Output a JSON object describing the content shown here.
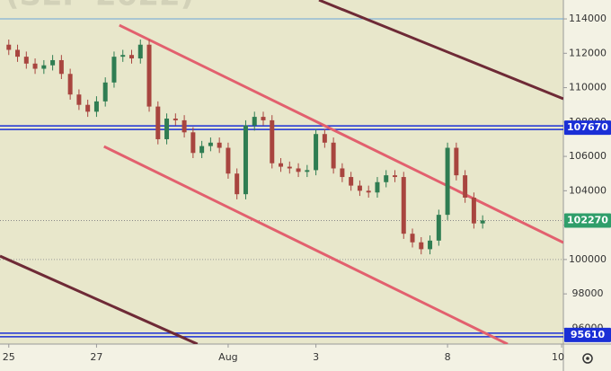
{
  "chart_data": {
    "type": "candlestick",
    "title": "(SEP 2022)",
    "x": [
      0,
      0.2,
      0.4,
      0.6,
      0.8,
      1,
      1.2,
      1.4,
      1.6,
      1.8,
      2,
      2.2,
      2.4,
      2.6,
      2.8,
      3,
      3.2,
      3.4,
      3.6,
      3.8,
      4,
      4.2,
      4.4,
      4.6,
      4.8,
      5,
      5.2,
      5.4,
      5.6,
      5.8,
      6,
      6.2,
      6.4,
      6.6,
      6.8,
      7,
      7.2,
      7.4,
      7.6,
      7.8,
      8,
      8.2,
      8.4,
      8.6,
      8.8,
      9,
      9.2,
      9.4,
      9.6,
      9.8,
      10,
      10.2,
      10.4,
      10.6,
      10.8
    ],
    "open": [
      112500,
      112200,
      111800,
      111400,
      111100,
      111300,
      111600,
      110800,
      109600,
      109000,
      108600,
      109200,
      110300,
      111800,
      111900,
      111700,
      112500,
      108900,
      107000,
      108200,
      108100,
      107400,
      106200,
      106600,
      106800,
      106500,
      105000,
      103800,
      107800,
      108300,
      108100,
      105600,
      105400,
      105300,
      105100,
      105200,
      107300,
      106800,
      105300,
      104800,
      104300,
      104000,
      103900,
      104500,
      104900,
      104800,
      101500,
      101000,
      100600,
      101100,
      102600,
      106500,
      104900,
      103600,
      102100
    ],
    "high": [
      112800,
      112500,
      112100,
      111700,
      111600,
      111900,
      111900,
      111100,
      109900,
      109300,
      109500,
      110600,
      112100,
      112200,
      112200,
      112800,
      112800,
      109200,
      108500,
      108500,
      108400,
      107700,
      106900,
      107100,
      107100,
      106800,
      105300,
      108100,
      108600,
      108600,
      108400,
      105900,
      105700,
      105600,
      105500,
      107600,
      107600,
      107100,
      105600,
      105100,
      104600,
      104300,
      104800,
      105200,
      105200,
      105100,
      101800,
      101300,
      101400,
      102900,
      106800,
      106800,
      105200,
      103900,
      102570
    ],
    "low": [
      111900,
      111500,
      111100,
      110800,
      110800,
      111000,
      110500,
      109300,
      108700,
      108300,
      108300,
      108900,
      110000,
      111500,
      111400,
      111400,
      108600,
      106700,
      106700,
      107800,
      107100,
      105900,
      105900,
      106300,
      106200,
      104700,
      103500,
      103500,
      107500,
      107800,
      105300,
      105100,
      105000,
      104800,
      104800,
      104900,
      106500,
      105000,
      104500,
      104000,
      103700,
      103600,
      103600,
      104200,
      104500,
      101200,
      100700,
      100300,
      100300,
      100800,
      102300,
      104600,
      103300,
      101800,
      101800
    ],
    "close": [
      112200,
      111800,
      111400,
      111100,
      111300,
      111600,
      110800,
      109600,
      109000,
      108600,
      109200,
      110300,
      111800,
      111900,
      111700,
      112500,
      108900,
      107000,
      108200,
      108100,
      107400,
      106200,
      106600,
      106800,
      106500,
      105000,
      103800,
      107800,
      108300,
      108100,
      105600,
      105400,
      105300,
      105100,
      105200,
      107300,
      106800,
      105300,
      104800,
      104300,
      104000,
      103900,
      104500,
      104900,
      104800,
      101500,
      101000,
      100600,
      101100,
      102600,
      106500,
      104900,
      103600,
      102100,
      102270
    ],
    "up_color": "#2f7d52",
    "down_color": "#a8453f",
    "xlim": [
      -0.2,
      12.64
    ],
    "ylim": [
      95080,
      115100
    ],
    "xticks": [
      {
        "value": 0,
        "label": "25"
      },
      {
        "value": 2,
        "label": "27"
      },
      {
        "value": 5,
        "label": "Aug"
      },
      {
        "value": 7,
        "label": "3"
      },
      {
        "value": 10,
        "label": "8"
      },
      {
        "value": 12.6,
        "label": "10"
      }
    ],
    "yticks": [
      96000,
      98000,
      100000,
      102000,
      104000,
      106000,
      108000,
      110000,
      112000,
      114000
    ],
    "levels": [
      107670,
      95610
    ],
    "level_color": "#1a2fd6",
    "hlines": [
      114000
    ],
    "dotted_lines": [
      100000
    ],
    "last_price": 102270,
    "last_price_color": "#2f9e6a",
    "trendlines": [
      {
        "x": [
          2.52,
          12.64
        ],
        "y": [
          113634,
          100984
        ],
        "color": "#e2606e"
      },
      {
        "x": [
          2.17,
          11.37
        ],
        "y": [
          106577,
          95077
        ],
        "color": "#e2606e"
      },
      {
        "x": [
          7.07,
          12.64
        ],
        "y": [
          115098,
          109348
        ],
        "color": "#6e2a36"
      },
      {
        "x": [
          -0.2,
          4.3
        ],
        "y": [
          100200,
          95077
        ],
        "color": "#6e2a36"
      }
    ]
  }
}
